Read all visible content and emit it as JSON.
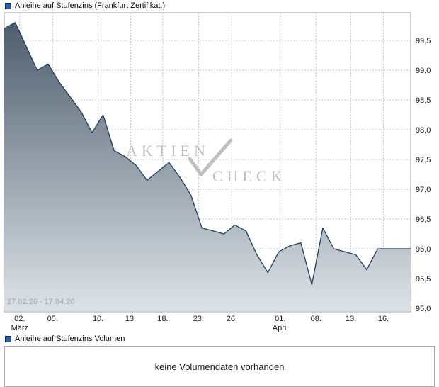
{
  "header": {
    "legend_label": "Anleihe auf Stufenzins (Frankfurt Zertifikat.)"
  },
  "watermark": {
    "line1": "AKTIEN",
    "line2": "CHECK"
  },
  "chart_data": {
    "type": "area",
    "title": "Anleihe auf Stufenzins (Frankfurt Zertifikat.)",
    "range_label": "27.02.26 - 17.04.26",
    "ylabel": "",
    "xlabel": "",
    "ylim": [
      95.0,
      100.0
    ],
    "grid": true,
    "legend_position": "top-left",
    "y_ticks": [
      {
        "v": 99.5,
        "label": "99,5"
      },
      {
        "v": 99.0,
        "label": "99,0"
      },
      {
        "v": 98.5,
        "label": "98,5"
      },
      {
        "v": 98.0,
        "label": "98,0"
      },
      {
        "v": 97.5,
        "label": "97,5"
      },
      {
        "v": 97.0,
        "label": "97,0"
      },
      {
        "v": 96.5,
        "label": "96,5"
      },
      {
        "v": 96.0,
        "label": "96,0"
      },
      {
        "v": 95.5,
        "label": "95,5"
      },
      {
        "v": 95.0,
        "label": "95,0"
      }
    ],
    "x_ticks": [
      {
        "label": "02.",
        "month": "März",
        "pos": 0.038
      },
      {
        "label": "05.",
        "month": "",
        "pos": 0.119
      },
      {
        "label": "10.",
        "month": "",
        "pos": 0.231
      },
      {
        "label": "13.",
        "month": "",
        "pos": 0.311
      },
      {
        "label": "18.",
        "month": "",
        "pos": 0.39
      },
      {
        "label": "23.",
        "month": "",
        "pos": 0.478
      },
      {
        "label": "26.",
        "month": "",
        "pos": 0.56
      },
      {
        "label": "01.",
        "month": "April",
        "pos": 0.679
      },
      {
        "label": "08.",
        "month": "",
        "pos": 0.767
      },
      {
        "label": "13.",
        "month": "",
        "pos": 0.853
      },
      {
        "label": "16.",
        "month": "",
        "pos": 0.933
      }
    ],
    "values": [
      99.7,
      99.8,
      99.4,
      99.0,
      99.1,
      98.8,
      98.55,
      98.3,
      97.95,
      98.25,
      97.65,
      97.55,
      97.4,
      97.15,
      97.3,
      97.45,
      97.2,
      96.9,
      96.35,
      96.3,
      96.25,
      96.4,
      96.3,
      95.9,
      95.6,
      95.95,
      96.05,
      96.1,
      95.4,
      96.35,
      96.0,
      95.95,
      95.9,
      95.65,
      96.0,
      96.0,
      96.0,
      96.0
    ],
    "line_color": "#1e3d5c",
    "area_top_color": "#4e5d6c",
    "area_bottom_color": "#dde3e8",
    "grid_color": "#bfc3cb",
    "border_color": "#a0a0a0",
    "tick_text_color": "#1a1a1a"
  },
  "volume": {
    "legend_label": "Anleihe auf Stufenzins Volumen",
    "message": "keine Volumendaten vorhanden"
  }
}
